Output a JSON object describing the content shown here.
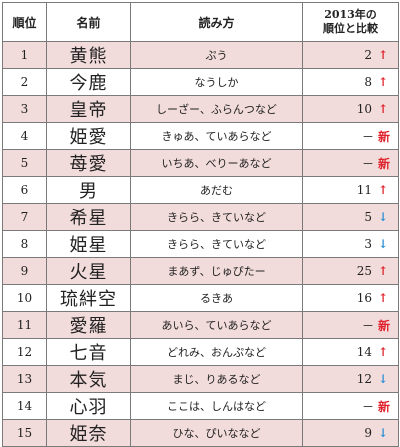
{
  "table": {
    "headers": {
      "rank": "順位",
      "name": "名前",
      "reading": "読み方",
      "comparison_line1": "2013年の",
      "comparison_line2": "順位と比較"
    },
    "rows": [
      {
        "rank": "1",
        "name": "黄熊",
        "reading": "ぷう",
        "prev": "2",
        "change": "up",
        "change_symbol": "↑",
        "shaded": true
      },
      {
        "rank": "2",
        "name": "今鹿",
        "reading": "なうしか",
        "prev": "8",
        "change": "up",
        "change_symbol": "↑",
        "shaded": false
      },
      {
        "rank": "3",
        "name": "皇帝",
        "reading": "しーざー、ふらんつなど",
        "prev": "10",
        "change": "up",
        "change_symbol": "↑",
        "shaded": true
      },
      {
        "rank": "4",
        "name": "姫愛",
        "reading": "きゅあ、ていあらなど",
        "prev": "－",
        "change": "new",
        "change_symbol": "新",
        "shaded": false
      },
      {
        "rank": "5",
        "name": "苺愛",
        "reading": "いちあ、べりーあなど",
        "prev": "－",
        "change": "new",
        "change_symbol": "新",
        "shaded": true
      },
      {
        "rank": "6",
        "name": "男",
        "reading": "あだむ",
        "prev": "11",
        "change": "up",
        "change_symbol": "↑",
        "shaded": false
      },
      {
        "rank": "7",
        "name": "希星",
        "reading": "きらら、きていなど",
        "prev": "5",
        "change": "down",
        "change_symbol": "↓",
        "shaded": true
      },
      {
        "rank": "8",
        "name": "姫星",
        "reading": "きらら、きていなど",
        "prev": "3",
        "change": "down",
        "change_symbol": "↓",
        "shaded": false
      },
      {
        "rank": "9",
        "name": "火星",
        "reading": "まあず、じゅぴたー",
        "prev": "25",
        "change": "up",
        "change_symbol": "↑",
        "shaded": true
      },
      {
        "rank": "10",
        "name": "琉絆空",
        "reading": "るきあ",
        "prev": "16",
        "change": "up",
        "change_symbol": "↑",
        "shaded": false
      },
      {
        "rank": "11",
        "name": "愛羅",
        "reading": "あいら、ていあらなど",
        "prev": "－",
        "change": "new",
        "change_symbol": "新",
        "shaded": true
      },
      {
        "rank": "12",
        "name": "七音",
        "reading": "どれみ、おんぷなど",
        "prev": "14",
        "change": "up",
        "change_symbol": "↑",
        "shaded": false
      },
      {
        "rank": "13",
        "name": "本気",
        "reading": "まじ、りあるなど",
        "prev": "12",
        "change": "down",
        "change_symbol": "↓",
        "shaded": true
      },
      {
        "rank": "14",
        "name": "心羽",
        "reading": "ここは、しんはなど",
        "prev": "－",
        "change": "new",
        "change_symbol": "新",
        "shaded": false
      },
      {
        "rank": "15",
        "name": "姫奈",
        "reading": "ひな、ぴいななど",
        "prev": "9",
        "change": "down",
        "change_symbol": "↓",
        "shaded": true
      }
    ]
  },
  "colors": {
    "shaded_row": "#f2dcdb",
    "arrow_up": "#e0242e",
    "arrow_down": "#2b8fd6",
    "new_tag": "#e0242e"
  }
}
